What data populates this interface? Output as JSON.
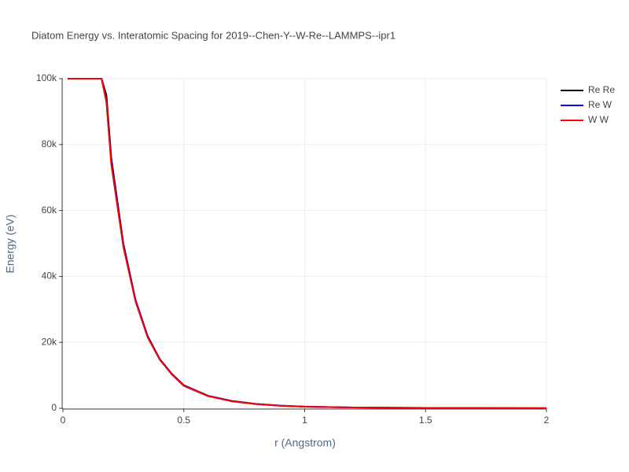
{
  "chart_data": {
    "type": "line",
    "title": "Diatom Energy vs. Interatomic Spacing for 2019--Chen-Y--W-Re--LAMMPS--ipr1",
    "x_label": "r (Angstrom)",
    "y_label": "Energy (eV)",
    "x": [
      0.02,
      0.04,
      0.06,
      0.08,
      0.1,
      0.12,
      0.14,
      0.16,
      0.18,
      0.2,
      0.25,
      0.3,
      0.35,
      0.4,
      0.45,
      0.5,
      0.6,
      0.7,
      0.8,
      0.9,
      1.0,
      1.2,
      1.4,
      1.6,
      1.8,
      2.0
    ],
    "series": [
      {
        "name": "Re Re",
        "color": "#000000",
        "values": [
          100000,
          100000,
          100000,
          100000,
          100000,
          100000,
          100000,
          100000,
          95000,
          76000,
          50000,
          33000,
          22000,
          15000,
          10500,
          7000,
          3800,
          2200,
          1300,
          800,
          500,
          250,
          150,
          100,
          60,
          30
        ]
      },
      {
        "name": "Re W",
        "color": "#0000ff",
        "values": [
          100000,
          100000,
          100000,
          100000,
          100000,
          100000,
          100000,
          100000,
          93000,
          75000,
          49500,
          32800,
          21800,
          14900,
          10400,
          6900,
          3750,
          2150,
          1280,
          780,
          490,
          240,
          140,
          95,
          55,
          28
        ]
      },
      {
        "name": "W W",
        "color": "#ff0000",
        "values": [
          100000,
          100000,
          100000,
          100000,
          100000,
          100000,
          100000,
          100000,
          93000,
          74000,
          49000,
          32500,
          21600,
          14800,
          10300,
          6800,
          3700,
          2100,
          1250,
          760,
          480,
          230,
          135,
          90,
          50,
          25
        ]
      }
    ],
    "xlim": [
      0,
      2
    ],
    "ylim": [
      0,
      100000
    ],
    "xticks": [
      0,
      0.5,
      1,
      1.5,
      2
    ],
    "yticks": [
      {
        "value": 0,
        "label": "0"
      },
      {
        "value": 20000,
        "label": "20k"
      },
      {
        "value": 40000,
        "label": "40k"
      },
      {
        "value": 60000,
        "label": "60k"
      },
      {
        "value": 80000,
        "label": "80k"
      },
      {
        "value": 100000,
        "label": "100k"
      }
    ],
    "grid": true,
    "legend": "right"
  }
}
